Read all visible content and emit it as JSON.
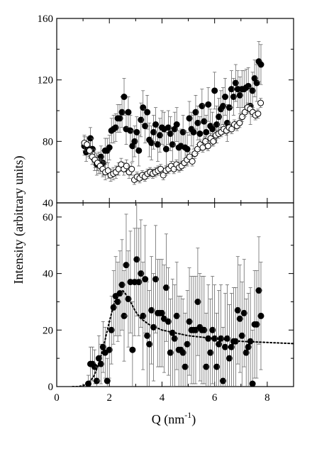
{
  "chart_data": [
    {
      "type": "scatter",
      "panel": "top",
      "xlim": [
        0,
        9
      ],
      "ylim": [
        40,
        160
      ],
      "xticks": [
        0,
        2,
        4,
        6,
        8
      ],
      "yticks": [
        40,
        80,
        120,
        160
      ],
      "ytick_labels": [
        "40",
        "80",
        "120",
        "160"
      ],
      "grid": false,
      "series": [
        {
          "marker": "filled-circle",
          "x": [
            1.05,
            1.12,
            1.2,
            1.28,
            1.36,
            1.44,
            1.52,
            1.6,
            1.68,
            1.76,
            1.84,
            1.92,
            2.0,
            2.08,
            2.16,
            2.24,
            2.32,
            2.4,
            2.48,
            2.56,
            2.64,
            2.72,
            2.8,
            2.88,
            2.96,
            3.04,
            3.12,
            3.2,
            3.28,
            3.36,
            3.44,
            3.52,
            3.6,
            3.68,
            3.76,
            3.84,
            3.92,
            4.0,
            4.08,
            4.16,
            4.24,
            4.32,
            4.4,
            4.48,
            4.56,
            4.64,
            4.72,
            4.8,
            4.88,
            4.96,
            5.04,
            5.12,
            5.2,
            5.28,
            5.36,
            5.44,
            5.52,
            5.6,
            5.68,
            5.76,
            5.84,
            5.92,
            6.0,
            6.08,
            6.16,
            6.24,
            6.32,
            6.4,
            6.48,
            6.56,
            6.64,
            6.72,
            6.8,
            6.88,
            6.96,
            7.04,
            7.12,
            7.2,
            7.28,
            7.36,
            7.44,
            7.52,
            7.6,
            7.68,
            7.76
          ],
          "y": [
            77,
            73,
            76,
            82,
            75,
            68,
            65,
            66,
            70,
            66,
            74,
            74,
            76,
            87,
            88,
            89,
            95,
            95,
            99,
            109,
            88,
            99,
            87,
            77,
            80,
            86,
            74,
            94,
            102,
            90,
            99,
            81,
            79,
            86,
            91,
            78,
            84,
            89,
            88,
            75,
            89,
            85,
            78,
            88,
            91,
            76,
            77,
            86,
            76,
            75,
            95,
            88,
            86,
            99,
            92,
            85,
            103,
            93,
            86,
            104,
            90,
            88,
            113,
            91,
            96,
            101,
            103,
            109,
            92,
            102,
            114,
            109,
            118,
            114,
            110,
            114,
            114,
            115,
            116,
            103,
            113,
            121,
            118,
            132,
            130
          ],
          "yerr": [
            6,
            6,
            6,
            7,
            7,
            7,
            7,
            7,
            7,
            8,
            8,
            8,
            8,
            8,
            9,
            9,
            9,
            9,
            10,
            12,
            10,
            10,
            10,
            10,
            10,
            10,
            10,
            11,
            11,
            11,
            11,
            11,
            11,
            11,
            11,
            11,
            11,
            11,
            11,
            11,
            11,
            11,
            11,
            11,
            11,
            11,
            11,
            11,
            11,
            11,
            11,
            11,
            11,
            11,
            11,
            11,
            11,
            11,
            11,
            11,
            11,
            11,
            12,
            12,
            12,
            12,
            12,
            12,
            12,
            12,
            12,
            12,
            12,
            12,
            12,
            12,
            12,
            12,
            12,
            12,
            12,
            12,
            12,
            13,
            13
          ]
        },
        {
          "marker": "open-circle",
          "x": [
            1.05,
            1.15,
            1.25,
            1.35,
            1.45,
            1.55,
            1.65,
            1.75,
            1.85,
            1.95,
            2.05,
            2.15,
            2.25,
            2.35,
            2.45,
            2.55,
            2.65,
            2.75,
            2.85,
            2.95,
            3.05,
            3.15,
            3.25,
            3.35,
            3.45,
            3.55,
            3.65,
            3.75,
            3.85,
            3.95,
            4.05,
            4.15,
            4.25,
            4.35,
            4.45,
            4.55,
            4.65,
            4.75,
            4.85,
            4.95,
            5.05,
            5.15,
            5.25,
            5.35,
            5.45,
            5.55,
            5.65,
            5.75,
            5.85,
            5.95,
            6.05,
            6.15,
            6.25,
            6.35,
            6.45,
            6.55,
            6.65,
            6.75,
            6.85,
            6.95,
            7.05,
            7.15,
            7.25,
            7.35,
            7.45,
            7.55,
            7.65,
            7.75
          ],
          "y": [
            79,
            78,
            74,
            70,
            68,
            66,
            64,
            62,
            60,
            61,
            58,
            59,
            60,
            62,
            65,
            62,
            64,
            60,
            62,
            55,
            57,
            56,
            58,
            57,
            59,
            60,
            59,
            60,
            61,
            62,
            58,
            61,
            62,
            64,
            62,
            65,
            63,
            64,
            66,
            68,
            70,
            67,
            72,
            75,
            78,
            76,
            80,
            77,
            82,
            80,
            84,
            85,
            86,
            88,
            87,
            89,
            88,
            91,
            90,
            92,
            96,
            99,
            102,
            101,
            99,
            97,
            98,
            105
          ],
          "yerr": [
            5,
            5,
            5,
            5,
            5,
            5,
            5,
            5,
            5,
            5,
            4,
            4,
            4,
            4,
            4,
            4,
            4,
            4,
            4,
            3,
            3,
            3,
            3,
            3,
            3,
            3,
            3,
            3,
            3,
            3,
            3,
            3,
            3,
            3,
            3,
            3,
            3,
            3,
            3,
            3,
            3,
            3,
            3,
            3,
            3,
            3,
            3,
            3,
            3,
            3,
            3,
            3,
            3,
            3,
            3,
            3,
            3,
            3,
            3,
            3,
            3,
            3,
            3,
            3,
            3,
            3,
            3,
            3
          ]
        }
      ]
    },
    {
      "type": "scatter",
      "panel": "bottom",
      "xlim": [
        0,
        9
      ],
      "ylim": [
        0,
        65
      ],
      "xticks": [
        0,
        2,
        4,
        6,
        8
      ],
      "xtick_labels": [
        "0",
        "2",
        "4",
        "6",
        "8"
      ],
      "yticks": [
        0,
        20,
        40,
        60
      ],
      "ytick_labels": [
        "0",
        "20",
        "40",
        "60"
      ],
      "grid": false,
      "series": [
        {
          "marker": "filled-circle",
          "x": [
            1.2,
            1.28,
            1.36,
            1.44,
            1.52,
            1.6,
            1.68,
            1.76,
            1.84,
            1.92,
            2.0,
            2.08,
            2.16,
            2.24,
            2.32,
            2.4,
            2.48,
            2.56,
            2.64,
            2.72,
            2.8,
            2.88,
            2.96,
            3.04,
            3.12,
            3.2,
            3.28,
            3.36,
            3.44,
            3.52,
            3.6,
            3.68,
            3.76,
            3.84,
            3.92,
            4.0,
            4.08,
            4.16,
            4.24,
            4.32,
            4.4,
            4.48,
            4.56,
            4.64,
            4.72,
            4.8,
            4.88,
            4.96,
            5.04,
            5.12,
            5.2,
            5.28,
            5.36,
            5.44,
            5.52,
            5.6,
            5.68,
            5.76,
            5.84,
            5.92,
            6.0,
            6.08,
            6.16,
            6.24,
            6.32,
            6.4,
            6.48,
            6.56,
            6.64,
            6.72,
            6.8,
            6.88,
            6.96,
            7.04,
            7.12,
            7.2,
            7.28,
            7.36,
            7.44,
            7.52,
            7.6,
            7.68,
            7.76
          ],
          "y": [
            1,
            8,
            8,
            7,
            2,
            10,
            8,
            14,
            12,
            2,
            13,
            20,
            28,
            32,
            30,
            33,
            36,
            25,
            43,
            31,
            37,
            13,
            37,
            45,
            37,
            40,
            25,
            38,
            18,
            15,
            27,
            21,
            38,
            26,
            26,
            26,
            24,
            35,
            23,
            12,
            19,
            17,
            25,
            13,
            13,
            12,
            7,
            15,
            23,
            20,
            20,
            20,
            30,
            21,
            20,
            20,
            7,
            17,
            12,
            20,
            17,
            7,
            15,
            17,
            2,
            14,
            17,
            10,
            14,
            16,
            16,
            27,
            24,
            18,
            26,
            12,
            14,
            16,
            1,
            22,
            22,
            34,
            25
          ],
          "yerr": [
            3,
            6,
            6,
            6,
            5,
            8,
            7,
            9,
            9,
            8,
            10,
            12,
            13,
            14,
            14,
            15,
            16,
            16,
            18,
            17,
            18,
            17,
            19,
            20,
            19,
            19,
            19,
            19,
            19,
            19,
            19,
            19,
            19,
            19,
            19,
            19,
            19,
            19,
            19,
            19,
            19,
            19,
            19,
            19,
            19,
            19,
            19,
            19,
            19,
            19,
            19,
            19,
            19,
            19,
            19,
            19,
            19,
            19,
            19,
            19,
            19,
            19,
            19,
            19,
            19,
            19,
            19,
            19,
            19,
            19,
            19,
            19,
            19,
            19,
            19,
            19,
            19,
            19,
            19,
            19,
            19,
            19,
            19
          ]
        },
        {
          "type": "line",
          "style": "dotted",
          "x": [
            0.6,
            0.8,
            1.0,
            1.2,
            1.4,
            1.6,
            1.8,
            2.0,
            2.2,
            2.4,
            2.5,
            2.6,
            2.8,
            3.0,
            3.2,
            3.5,
            4.0,
            4.5,
            5.0,
            5.5,
            6.0,
            6.5,
            7.0,
            7.5,
            8.0,
            8.5,
            9.0
          ],
          "y": [
            0,
            0,
            0.3,
            1.2,
            3.5,
            8,
            15,
            23,
            30,
            33,
            34,
            33,
            30,
            26.5,
            24,
            22,
            20,
            19,
            18,
            17.5,
            17,
            16.5,
            16,
            15.8,
            15.6,
            15.4,
            15.2
          ]
        }
      ]
    }
  ],
  "figure": {
    "ylabel": "Intensity (arbitrary units)",
    "xlabel_main": "Q (nm",
    "xlabel_sup": "-1",
    "xlabel_close": ")"
  }
}
